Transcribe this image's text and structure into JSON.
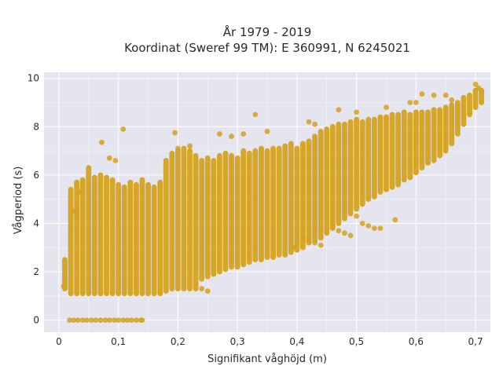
{
  "chart_data": {
    "type": "scatter",
    "title_line1": "År 1979 - 2019",
    "title_line2": "Koordinat (Sweref 99 TM): E 360991, N 6245021",
    "xlabel": "Signifikant våghöjd (m)",
    "ylabel": "Vågperiod (s)",
    "xlim": [
      -0.025,
      0.725
    ],
    "ylim": [
      -0.5,
      10.25
    ],
    "xticks": [
      0,
      0.1,
      0.2,
      0.3,
      0.4,
      0.5,
      0.6,
      0.7
    ],
    "xtick_labels": [
      "0",
      "0,1",
      "0,2",
      "0,3",
      "0,4",
      "0,5",
      "0,6",
      "0,7"
    ],
    "yticks": [
      0,
      2,
      4,
      6,
      8,
      10
    ],
    "ytick_labels": [
      "0",
      "2",
      "4",
      "6",
      "8",
      "10"
    ],
    "grid": true,
    "colors": {
      "marker": "#d4a21f",
      "plot_background": "#e5e5ef",
      "grid": "#ffffff"
    },
    "series": [
      {
        "marker": "circle",
        "columns": [
          [
            0.01,
            1.3,
            2.5
          ],
          [
            0.02,
            1.1,
            5.4
          ],
          [
            0.03,
            1.1,
            5.7
          ],
          [
            0.04,
            1.1,
            5.8
          ],
          [
            0.05,
            1.1,
            6.3
          ],
          [
            0.06,
            1.1,
            5.9
          ],
          [
            0.07,
            1.1,
            6.0
          ],
          [
            0.08,
            1.1,
            5.9
          ],
          [
            0.09,
            1.1,
            5.8
          ],
          [
            0.1,
            1.1,
            5.6
          ],
          [
            0.11,
            1.1,
            5.5
          ],
          [
            0.12,
            1.1,
            5.7
          ],
          [
            0.13,
            1.1,
            5.6
          ],
          [
            0.14,
            1.1,
            5.8
          ],
          [
            0.15,
            1.1,
            5.6
          ],
          [
            0.16,
            1.1,
            5.5
          ],
          [
            0.17,
            1.1,
            5.7
          ],
          [
            0.18,
            1.2,
            6.6
          ],
          [
            0.19,
            1.3,
            6.9
          ],
          [
            0.2,
            1.3,
            7.0
          ],
          [
            0.21,
            1.3,
            7.1
          ],
          [
            0.22,
            1.3,
            7.0
          ],
          [
            0.23,
            1.3,
            6.8
          ],
          [
            0.24,
            1.7,
            6.6
          ],
          [
            0.25,
            1.8,
            6.7
          ],
          [
            0.26,
            1.9,
            6.6
          ],
          [
            0.27,
            2.0,
            6.8
          ],
          [
            0.28,
            2.1,
            6.9
          ],
          [
            0.29,
            2.2,
            6.8
          ],
          [
            0.3,
            2.2,
            6.7
          ],
          [
            0.31,
            2.3,
            7.0
          ],
          [
            0.32,
            2.4,
            6.9
          ],
          [
            0.33,
            2.5,
            7.0
          ],
          [
            0.34,
            2.5,
            7.1
          ],
          [
            0.35,
            2.6,
            7.0
          ],
          [
            0.36,
            2.6,
            7.1
          ],
          [
            0.37,
            2.7,
            7.1
          ],
          [
            0.38,
            2.7,
            7.2
          ],
          [
            0.39,
            2.8,
            7.3
          ],
          [
            0.4,
            2.9,
            7.1
          ],
          [
            0.41,
            3.0,
            7.3
          ],
          [
            0.42,
            3.2,
            7.4
          ],
          [
            0.43,
            3.3,
            7.6
          ],
          [
            0.44,
            3.4,
            7.8
          ],
          [
            0.45,
            3.6,
            7.9
          ],
          [
            0.46,
            3.8,
            8.0
          ],
          [
            0.47,
            4.0,
            8.1
          ],
          [
            0.48,
            4.2,
            8.1
          ],
          [
            0.49,
            4.4,
            8.2
          ],
          [
            0.5,
            4.6,
            8.3
          ],
          [
            0.51,
            4.8,
            8.2
          ],
          [
            0.52,
            5.0,
            8.3
          ],
          [
            0.53,
            5.1,
            8.3
          ],
          [
            0.54,
            5.3,
            8.4
          ],
          [
            0.55,
            5.4,
            8.4
          ],
          [
            0.56,
            5.5,
            8.5
          ],
          [
            0.57,
            5.6,
            8.5
          ],
          [
            0.58,
            5.8,
            8.6
          ],
          [
            0.59,
            5.9,
            8.5
          ],
          [
            0.6,
            6.1,
            8.6
          ],
          [
            0.61,
            6.3,
            8.6
          ],
          [
            0.62,
            6.5,
            8.6
          ],
          [
            0.63,
            6.6,
            8.7
          ],
          [
            0.64,
            6.8,
            8.7
          ],
          [
            0.65,
            7.0,
            8.8
          ],
          [
            0.66,
            7.3,
            8.9
          ],
          [
            0.67,
            7.7,
            9.0
          ],
          [
            0.68,
            8.1,
            9.2
          ],
          [
            0.69,
            8.5,
            9.3
          ],
          [
            0.7,
            8.8,
            9.5
          ],
          [
            0.71,
            9.0,
            9.5
          ]
        ],
        "points": [
          [
            0.018,
            0.0
          ],
          [
            0.025,
            0.0
          ],
          [
            0.032,
            0.0
          ],
          [
            0.04,
            0.0
          ],
          [
            0.047,
            0.0
          ],
          [
            0.055,
            0.0
          ],
          [
            0.062,
            0.0
          ],
          [
            0.07,
            0.0
          ],
          [
            0.078,
            0.0
          ],
          [
            0.085,
            0.0
          ],
          [
            0.093,
            0.0
          ],
          [
            0.1,
            0.0
          ],
          [
            0.108,
            0.0
          ],
          [
            0.115,
            0.0
          ],
          [
            0.122,
            0.0
          ],
          [
            0.13,
            0.0
          ],
          [
            0.138,
            0.0
          ],
          [
            0.14,
            0.0
          ],
          [
            0.01,
            1.5
          ],
          [
            0.008,
            1.4
          ],
          [
            0.072,
            7.35
          ],
          [
            0.108,
            7.9
          ],
          [
            0.33,
            8.5
          ],
          [
            0.085,
            6.7
          ],
          [
            0.095,
            6.6
          ],
          [
            0.195,
            7.75
          ],
          [
            0.63,
            9.3
          ],
          [
            0.61,
            9.35
          ],
          [
            0.59,
            9.0
          ],
          [
            0.7,
            9.75
          ],
          [
            0.705,
            9.6
          ],
          [
            0.565,
            4.15
          ],
          [
            0.5,
            4.3
          ],
          [
            0.51,
            4.0
          ],
          [
            0.52,
            3.9
          ],
          [
            0.53,
            3.8
          ],
          [
            0.54,
            3.8
          ],
          [
            0.46,
            3.9
          ],
          [
            0.47,
            3.7
          ],
          [
            0.48,
            3.6
          ],
          [
            0.49,
            3.5
          ],
          [
            0.41,
            3.4
          ],
          [
            0.42,
            3.3
          ],
          [
            0.43,
            3.2
          ],
          [
            0.44,
            3.1
          ],
          [
            0.395,
            3.0
          ],
          [
            0.25,
            1.2
          ],
          [
            0.24,
            1.3
          ],
          [
            0.03,
            4.4
          ],
          [
            0.02,
            3.8
          ],
          [
            0.025,
            4.5
          ],
          [
            0.035,
            5.3
          ],
          [
            0.29,
            7.6
          ],
          [
            0.31,
            7.7
          ],
          [
            0.35,
            7.8
          ],
          [
            0.42,
            8.2
          ],
          [
            0.43,
            8.1
          ],
          [
            0.47,
            8.7
          ],
          [
            0.5,
            8.6
          ],
          [
            0.55,
            8.8
          ],
          [
            0.6,
            9.0
          ],
          [
            0.65,
            9.3
          ],
          [
            0.66,
            9.1
          ],
          [
            0.27,
            7.7
          ],
          [
            0.22,
            7.2
          ],
          [
            0.2,
            7.1
          ]
        ]
      }
    ]
  }
}
